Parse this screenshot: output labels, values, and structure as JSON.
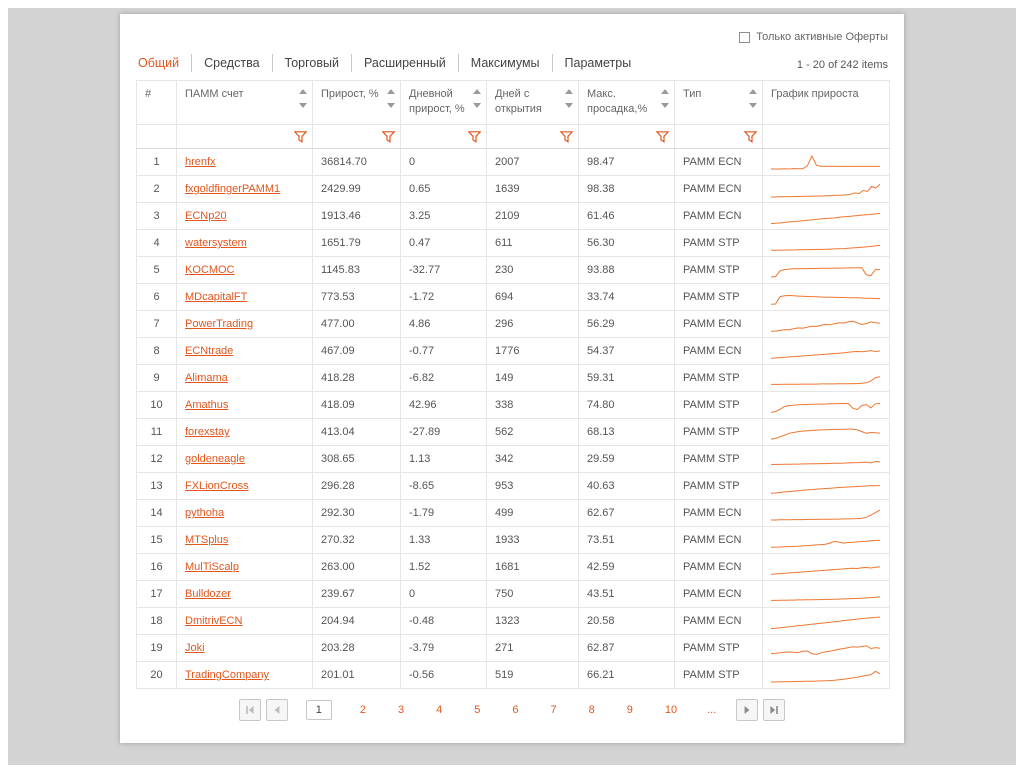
{
  "colors": {
    "accent": "#e2571e",
    "spark": "#ef7630"
  },
  "header": {
    "checkbox_label": "Только активные Оферты",
    "checkbox_checked": false,
    "items_info": "1 - 20 of 242 items",
    "tabs": [
      {
        "id": "general",
        "label": "Общий",
        "active": true
      },
      {
        "id": "funds",
        "label": "Средства",
        "active": false
      },
      {
        "id": "trading",
        "label": "Торговый",
        "active": false
      },
      {
        "id": "extended",
        "label": "Расширенный",
        "active": false
      },
      {
        "id": "maximums",
        "label": "Максимумы",
        "active": false
      },
      {
        "id": "parameters",
        "label": "Параметры",
        "active": false
      }
    ]
  },
  "table": {
    "columns": [
      {
        "id": "num",
        "label": "#",
        "sortable": false,
        "filterable": false
      },
      {
        "id": "account",
        "label": "ПАММ счет",
        "sortable": true,
        "filterable": true
      },
      {
        "id": "growth",
        "label": "Прирост, %",
        "sortable": true,
        "filterable": true
      },
      {
        "id": "daily_growth",
        "label": "Дневной прирост, %",
        "sortable": true,
        "filterable": true
      },
      {
        "id": "days_open",
        "label": "Дней с открытия",
        "sortable": true,
        "filterable": true
      },
      {
        "id": "max_drawdown",
        "label": "Макс. просадка,%",
        "sortable": true,
        "filterable": true
      },
      {
        "id": "type",
        "label": "Тип",
        "sortable": true,
        "filterable": true
      },
      {
        "id": "chart",
        "label": "График прироста",
        "sortable": false,
        "filterable": false
      }
    ],
    "rows": [
      {
        "num": "1",
        "name": "hrenfx",
        "growth": "36814.70",
        "daily": "0",
        "days": "2007",
        "drawdown": "98.47",
        "type": "PAMM ECN",
        "spark": [
          12,
          12,
          12,
          13,
          12,
          14,
          13,
          13,
          30,
          88,
          34,
          28,
          27,
          28,
          28,
          27,
          27,
          27,
          27,
          27,
          27,
          27,
          27,
          27,
          27
        ]
      },
      {
        "num": "2",
        "name": "fxgoldfingerPAMM1",
        "growth": "2429.99",
        "daily": "0.65",
        "days": "1639",
        "drawdown": "98.38",
        "type": "PAMM ECN",
        "spark": [
          6,
          6,
          7,
          7,
          8,
          8,
          9,
          9,
          10,
          10,
          11,
          12,
          12,
          13,
          14,
          15,
          16,
          17,
          18,
          22,
          30,
          26,
          44,
          38,
          68,
          58,
          82
        ]
      },
      {
        "num": "3",
        "name": "ECNp20",
        "growth": "1913.46",
        "daily": "3.25",
        "days": "2109",
        "drawdown": "61.46",
        "type": "PAMM ECN",
        "spark": [
          8,
          10,
          12,
          15,
          18,
          20,
          22,
          25,
          28,
          30,
          33,
          36,
          38,
          40,
          42,
          45,
          48,
          50,
          53,
          55,
          58,
          60,
          62,
          65,
          68
        ]
      },
      {
        "num": "4",
        "name": "watersystem",
        "growth": "1651.79",
        "daily": "0.47",
        "days": "611",
        "drawdown": "56.30",
        "type": "PAMM STP",
        "spark": [
          10,
          10,
          11,
          11,
          12,
          12,
          13,
          13,
          14,
          14,
          15,
          15,
          16,
          17,
          18,
          19,
          20,
          22,
          24,
          26,
          28,
          30,
          33,
          36,
          40
        ]
      },
      {
        "num": "5",
        "name": "KOCMOC",
        "growth": "1145.83",
        "daily": "-32.77",
        "days": "230",
        "drawdown": "93.88",
        "type": "PAMM STP",
        "spark": [
          12,
          14,
          48,
          56,
          58,
          60,
          60,
          61,
          61,
          62,
          62,
          63,
          63,
          63,
          64,
          64,
          64,
          65,
          65,
          66,
          66,
          24,
          20,
          56,
          54
        ]
      },
      {
        "num": "6",
        "name": "MDcapitalFT",
        "growth": "773.53",
        "daily": "-1.72",
        "days": "694",
        "drawdown": "33.74",
        "type": "PAMM STP",
        "spark": [
          10,
          12,
          55,
          60,
          62,
          60,
          58,
          57,
          56,
          55,
          54,
          53,
          52,
          52,
          51,
          50,
          50,
          49,
          48,
          48,
          47,
          46,
          45,
          44,
          43
        ]
      },
      {
        "num": "7",
        "name": "PowerTrading",
        "growth": "477.00",
        "daily": "4.86",
        "days": "296",
        "drawdown": "56.29",
        "type": "PAMM ECN",
        "spark": [
          10,
          12,
          15,
          20,
          18,
          25,
          30,
          28,
          35,
          40,
          38,
          45,
          50,
          48,
          55,
          60,
          58,
          65,
          70,
          60,
          50,
          55,
          65,
          60,
          58
        ]
      },
      {
        "num": "8",
        "name": "ECNtrade",
        "growth": "467.09",
        "daily": "-0.77",
        "days": "1776",
        "drawdown": "54.37",
        "type": "PAMM ECN",
        "spark": [
          10,
          12,
          14,
          16,
          18,
          20,
          22,
          24,
          26,
          28,
          30,
          32,
          34,
          36,
          38,
          40,
          42,
          45,
          48,
          50,
          48,
          52,
          55,
          50,
          53
        ]
      },
      {
        "num": "9",
        "name": "Alimama",
        "growth": "418.28",
        "daily": "-6.82",
        "days": "149",
        "drawdown": "59.31",
        "type": "PAMM STP",
        "spark": [
          15,
          15,
          15,
          16,
          16,
          16,
          16,
          17,
          17,
          17,
          17,
          18,
          18,
          18,
          18,
          19,
          19,
          19,
          20,
          20,
          22,
          25,
          35,
          55,
          60
        ]
      },
      {
        "num": "10",
        "name": "Amathus",
        "growth": "418.09",
        "daily": "42.96",
        "days": "338",
        "drawdown": "74.80",
        "type": "PAMM STP",
        "spark": [
          10,
          14,
          28,
          44,
          50,
          52,
          54,
          55,
          56,
          57,
          58,
          58,
          59,
          60,
          60,
          61,
          62,
          62,
          34,
          26,
          50,
          55,
          36,
          60,
          62
        ]
      },
      {
        "num": "11",
        "name": "forexstay",
        "growth": "413.04",
        "daily": "-27.89",
        "days": "562",
        "drawdown": "68.13",
        "type": "PAMM STP",
        "spark": [
          10,
          15,
          25,
          35,
          45,
          50,
          55,
          58,
          60,
          62,
          64,
          65,
          66,
          67,
          68,
          68,
          69,
          70,
          70,
          65,
          55,
          45,
          50,
          48,
          46
        ]
      },
      {
        "num": "12",
        "name": "goldeneagle",
        "growth": "308.65",
        "daily": "1.13",
        "days": "342",
        "drawdown": "29.59",
        "type": "PAMM STP",
        "spark": [
          20,
          21,
          21,
          22,
          22,
          23,
          23,
          24,
          24,
          25,
          25,
          26,
          26,
          27,
          28,
          28,
          29,
          30,
          31,
          32,
          33,
          35,
          30,
          38,
          36
        ]
      },
      {
        "num": "13",
        "name": "FXLionCross",
        "growth": "296.28",
        "daily": "-8.65",
        "days": "953",
        "drawdown": "40.63",
        "type": "PAMM STP",
        "spark": [
          10,
          12,
          15,
          18,
          20,
          23,
          25,
          28,
          30,
          32,
          35,
          36,
          38,
          40,
          42,
          44,
          45,
          47,
          48,
          50,
          52,
          53,
          55,
          54,
          56
        ]
      },
      {
        "num": "14",
        "name": "pythoha",
        "growth": "292.30",
        "daily": "-1.79",
        "days": "499",
        "drawdown": "62.67",
        "type": "PAMM ECN",
        "spark": [
          12,
          12,
          13,
          13,
          13,
          14,
          14,
          14,
          15,
          15,
          15,
          16,
          16,
          16,
          17,
          17,
          18,
          18,
          19,
          20,
          22,
          28,
          40,
          55,
          70
        ]
      },
      {
        "num": "15",
        "name": "MTSplus",
        "growth": "270.32",
        "daily": "1.33",
        "days": "1933",
        "drawdown": "73.51",
        "type": "PAMM ECN",
        "spark": [
          10,
          11,
          12,
          13,
          14,
          15,
          16,
          18,
          20,
          22,
          24,
          26,
          28,
          35,
          45,
          40,
          35,
          38,
          40,
          42,
          44,
          46,
          48,
          50,
          52
        ]
      },
      {
        "num": "16",
        "name": "MulTiScalp",
        "growth": "263.00",
        "daily": "1.52",
        "days": "1681",
        "drawdown": "42.59",
        "type": "PAMM ECN",
        "spark": [
          10,
          12,
          14,
          16,
          18,
          20,
          22,
          24,
          26,
          28,
          30,
          32,
          34,
          36,
          38,
          40,
          42,
          44,
          46,
          44,
          48,
          50,
          47,
          52,
          54
        ]
      },
      {
        "num": "17",
        "name": "Bulldozer",
        "growth": "239.67",
        "daily": "0",
        "days": "750",
        "drawdown": "43.51",
        "type": "PAMM ECN",
        "spark": [
          15,
          15,
          16,
          16,
          17,
          17,
          18,
          18,
          19,
          19,
          20,
          20,
          21,
          21,
          22,
          23,
          24,
          25,
          26,
          27,
          28,
          30,
          32,
          34,
          36
        ]
      },
      {
        "num": "18",
        "name": "DmitrivECN",
        "growth": "204.94",
        "daily": "-0.48",
        "days": "1323",
        "drawdown": "20.58",
        "type": "PAMM ECN",
        "spark": [
          8,
          10,
          13,
          16,
          19,
          22,
          25,
          28,
          31,
          34,
          37,
          40,
          43,
          46,
          49,
          52,
          55,
          58,
          61,
          64,
          67,
          70,
          72,
          74,
          76
        ]
      },
      {
        "num": "19",
        "name": "Joki",
        "growth": "203.28",
        "daily": "-3.79",
        "days": "271",
        "drawdown": "62.87",
        "type": "PAMM STP",
        "spark": [
          20,
          22,
          25,
          28,
          30,
          28,
          26,
          35,
          35,
          20,
          15,
          25,
          30,
          35,
          40,
          45,
          50,
          55,
          60,
          58,
          62,
          65,
          50,
          55,
          52
        ]
      },
      {
        "num": "20",
        "name": "TradingCompany",
        "growth": "201.01",
        "daily": "-0.56",
        "days": "519",
        "drawdown": "66.21",
        "type": "PAMM STP",
        "spark": [
          12,
          12,
          13,
          13,
          14,
          14,
          15,
          15,
          16,
          16,
          17,
          18,
          19,
          20,
          22,
          25,
          28,
          32,
          36,
          40,
          45,
          50,
          55,
          75,
          60
        ]
      }
    ]
  },
  "pager": {
    "current": "1",
    "pages": [
      "1",
      "2",
      "3",
      "4",
      "5",
      "6",
      "7",
      "8",
      "9",
      "10"
    ],
    "ellipsis": "..."
  }
}
